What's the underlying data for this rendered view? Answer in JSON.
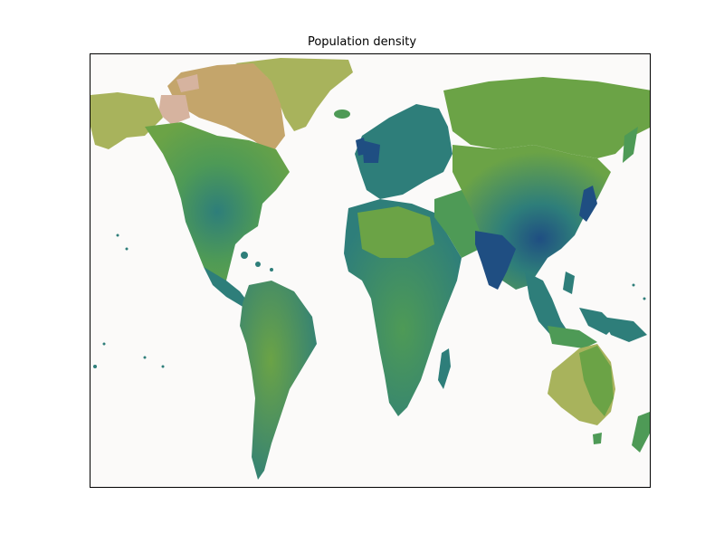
{
  "title": "Population density",
  "colors": {
    "ocean": "#fbfaf9",
    "tan": "#c4a56b",
    "pink": "#d6b39f",
    "olive": "#a8b35c",
    "green": "#6ba346",
    "midgreen": "#4e9a56",
    "teal": "#2e7e7a",
    "darkblue": "#1f4e82"
  }
}
